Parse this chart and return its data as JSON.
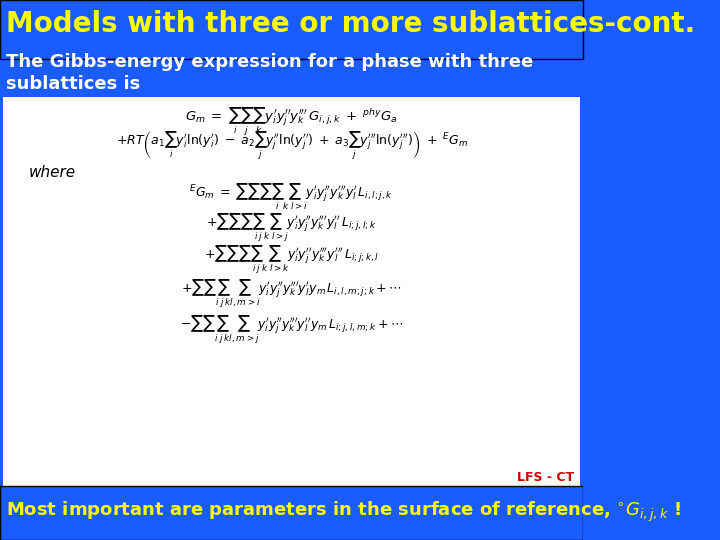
{
  "title": "Models with three or more sublattices-cont.",
  "subtitle_line1": "The Gibbs-energy expression for a phase with three",
  "subtitle_line2": "sublattices is",
  "title_bg_color": "#1a5cff",
  "title_text_color": "#ffff00",
  "subtitle_text_color": "#ffffff",
  "content_bg_color": "#cce0ff",
  "bottom_bg_color": "#1a5cff",
  "bottom_text_color": "#ffff00",
  "bottom_text": "Most important are parameters in the surface of reference, $^{\\circ}G_{i,j,k}$ !",
  "watermark": "LFS - CT",
  "watermark_color": "#cc0000"
}
